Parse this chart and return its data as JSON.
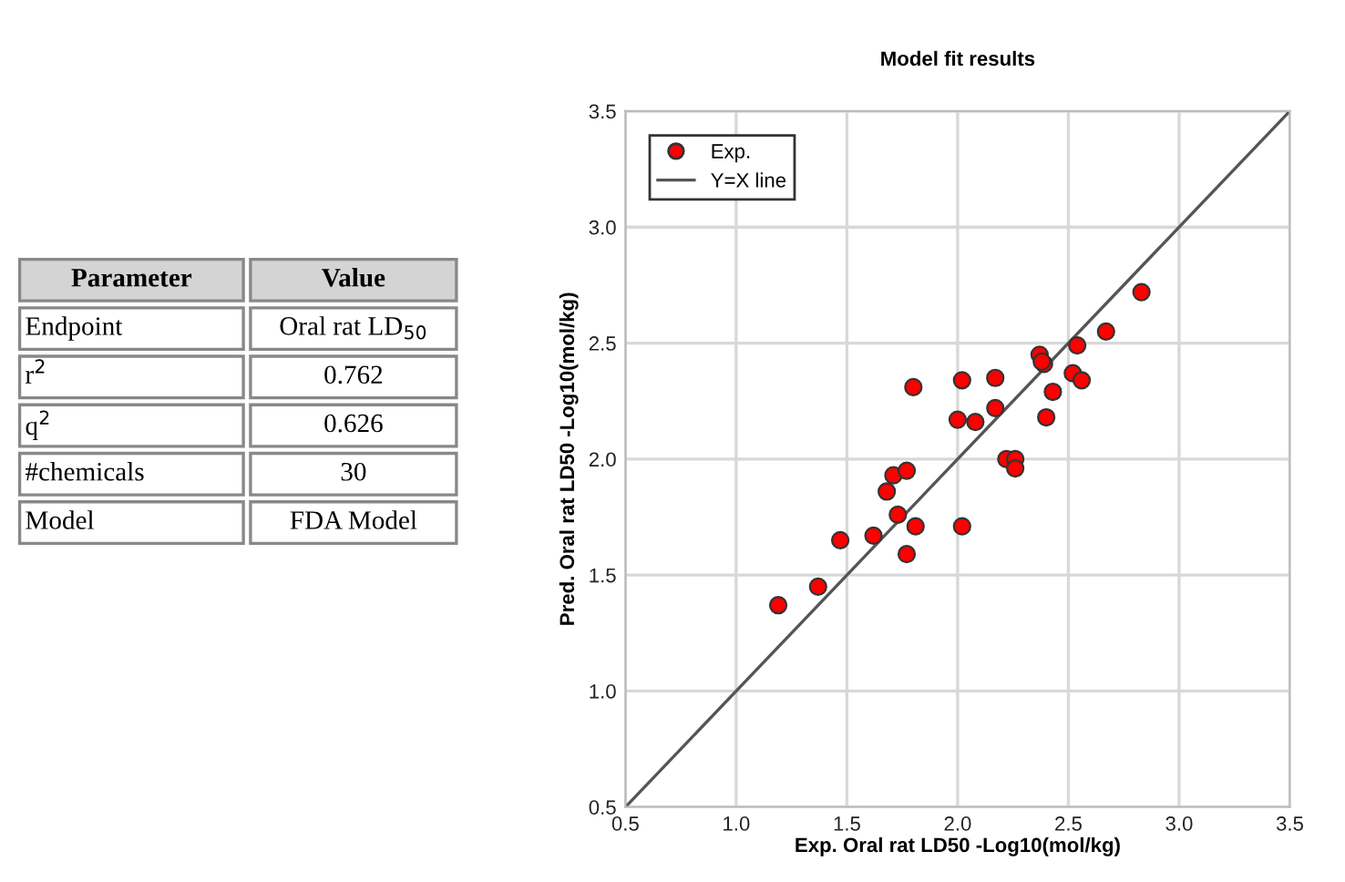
{
  "chart_data": [
    {
      "type": "other",
      "annotations": [
        "Parameter",
        "Value",
        "Endpoint",
        "Oral rat LD$_{50}$",
        "r$^{2}$",
        "0.762",
        "q$^{2}$",
        "0.626",
        "#chemicals",
        "30",
        "Model",
        "FDA Model"
      ]
    },
    {
      "type": "scatter",
      "title": "Model fit results",
      "xlabel": "Exp. Oral rat LD50 -Log10(mol/kg)",
      "ylabel": "Pred. Oral rat LD50 -Log10(mol/kg)",
      "xlim": [
        0.5,
        3.5
      ],
      "ylim": [
        0.5,
        3.5
      ],
      "xticks": [
        0.5,
        {
          "value": 1,
          "label": "1.0"
        },
        1.5,
        {
          "value": 2,
          "label": "2.0"
        },
        2.5,
        {
          "value": 3,
          "label": "3.0"
        },
        3.5
      ],
      "yticks": [
        0.5,
        {
          "value": 1,
          "label": "1.0"
        },
        1.5,
        {
          "value": 2,
          "label": "2.0"
        },
        2.5,
        {
          "value": 3,
          "label": "3.0"
        },
        3.5
      ],
      "grid": true,
      "legend": "top left",
      "series": [
        {
          "name": "Exp.",
          "type": "scatter",
          "marker": "circle",
          "color": "#ff0000",
          "x": [
            1.19,
            1.37,
            1.47,
            1.62,
            1.68,
            1.71,
            1.77,
            1.73,
            1.81,
            1.77,
            2.02,
            2.22,
            2.26,
            2.26,
            1.8,
            2.0,
            2.08,
            2.02,
            2.17,
            2.17,
            2.37,
            2.39,
            2.38,
            2.4,
            2.43,
            2.52,
            2.56,
            2.54,
            2.67,
            2.83
          ],
          "values": [
            1.37,
            1.45,
            1.65,
            1.67,
            1.86,
            1.93,
            1.95,
            1.76,
            1.71,
            1.59,
            1.71,
            2.0,
            2.0,
            1.96,
            2.31,
            2.17,
            2.16,
            2.34,
            2.35,
            2.22,
            2.45,
            2.41,
            2.42,
            2.18,
            2.29,
            2.37,
            2.34,
            2.49,
            2.55,
            2.72
          ]
        },
        {
          "name": "Y=X line",
          "type": "line",
          "marker": "none",
          "color": "#555555",
          "x": [
            0.5,
            3.5
          ],
          "values": [
            0.5,
            3.5
          ]
        }
      ]
    }
  ]
}
